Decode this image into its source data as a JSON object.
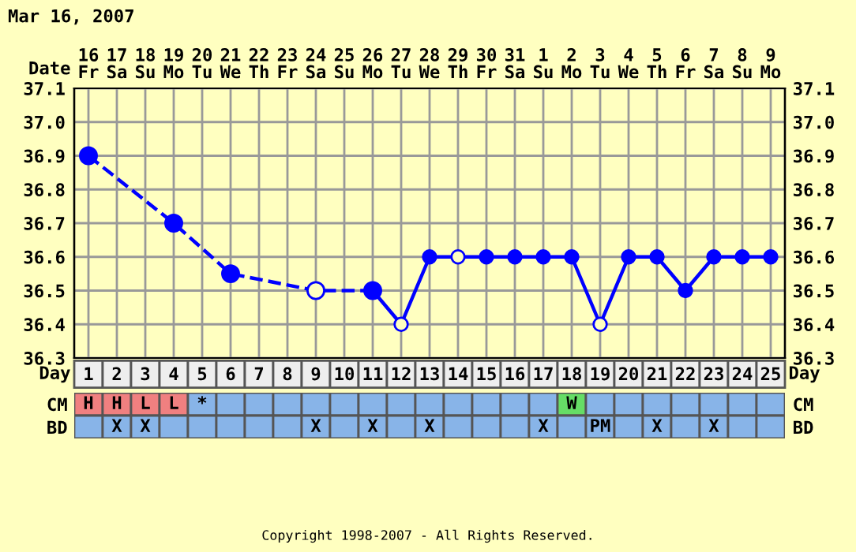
{
  "chart_data": [
    {
      "type": "line",
      "title": "Mar 16, 2007",
      "xlabel": "Day",
      "x2label": "Date",
      "xlim": [
        0.5,
        25.5
      ],
      "xticks": [
        1,
        2,
        3,
        4,
        5,
        6,
        7,
        8,
        9,
        10,
        11,
        12,
        13,
        14,
        15,
        16,
        17,
        18,
        19,
        20,
        21,
        22,
        23,
        24,
        25
      ],
      "x2lim": [
        "2007-03-15T12:00",
        "2007-04-09T12:00"
      ],
      "x2ticks": [
        {
          "value": "2007-03-16",
          "label": "16\nFr"
        },
        {
          "value": "2007-03-17",
          "label": "17\nSa"
        },
        {
          "value": "2007-03-18",
          "label": "18\nSu"
        },
        {
          "value": "2007-03-19",
          "label": "19\nMo"
        },
        {
          "value": "2007-03-20",
          "label": "20\nTu"
        },
        {
          "value": "2007-03-21",
          "label": "21\nWe"
        },
        {
          "value": "2007-03-22",
          "label": "22\nTh"
        },
        {
          "value": "2007-03-23",
          "label": "23\nFr"
        },
        {
          "value": "2007-03-24",
          "label": "24\nSa"
        },
        {
          "value": "2007-03-25",
          "label": "25\nSu"
        },
        {
          "value": "2007-03-26",
          "label": "26\nMo"
        },
        {
          "value": "2007-03-27",
          "label": "27\nTu"
        },
        {
          "value": "2007-03-28",
          "label": "28\nWe"
        },
        {
          "value": "2007-03-29",
          "label": "29\nTh"
        },
        {
          "value": "2007-03-30",
          "label": "30\nFr"
        },
        {
          "value": "2007-03-31",
          "label": "31\nSa"
        },
        {
          "value": "2007-04-01",
          "label": "1\nSu"
        },
        {
          "value": "2007-04-02",
          "label": "2\nMo"
        },
        {
          "value": "2007-04-03",
          "label": "3\nTu"
        },
        {
          "value": "2007-04-04",
          "label": "4\nWe"
        },
        {
          "value": "2007-04-05",
          "label": "5\nTh"
        },
        {
          "value": "2007-04-06",
          "label": "6\nFr"
        },
        {
          "value": "2007-04-07",
          "label": "7\nSa"
        },
        {
          "value": "2007-04-08",
          "label": "8\nSu"
        },
        {
          "value": "2007-04-09",
          "label": "9\nMo"
        }
      ],
      "ylim": [
        36.3,
        37.1
      ],
      "yticks": [
        36.3,
        36.4,
        36.5,
        36.6,
        36.7,
        36.8,
        36.9,
        {
          "value": 37.0,
          "label": "37.0"
        },
        37.1
      ],
      "y2lim": [
        36.3,
        37.1
      ],
      "y2ticks": [
        36.3,
        36.4,
        36.5,
        36.6,
        36.7,
        36.8,
        36.9,
        {
          "value": 37.0,
          "label": "37.0"
        },
        37.1
      ],
      "grid": true,
      "marker": "circle",
      "series": [
        {
          "color": "#0000ff",
          "line_style": "dashed",
          "x": [
            1,
            4,
            6,
            9,
            11
          ],
          "values": [
            36.9,
            36.7,
            36.55,
            36.5,
            36.5
          ],
          "colors": [
            "#0000ff",
            "#0000ff",
            "#0000ff",
            "#ffffc0",
            "#0000ff"
          ]
        },
        {
          "color": "#0000ff",
          "line_style": "solid",
          "x": [
            11,
            12,
            13,
            14,
            15,
            16,
            17,
            18,
            19,
            20,
            21,
            22,
            23,
            24,
            25
          ],
          "values": [
            36.5,
            36.4,
            36.6,
            36.6,
            36.6,
            36.6,
            36.6,
            36.6,
            36.4,
            36.6,
            36.6,
            36.5,
            36.6,
            36.6,
            36.6
          ],
          "colors": [
            "#0000ff",
            "#ffffc0",
            "#0000ff",
            "#ffffc0",
            "#0000ff",
            "#0000ff",
            "#0000ff",
            "#0000ff",
            "#ffffc0",
            "#0000ff",
            "#0000ff",
            "#0000ff",
            "#0000ff",
            "#0000ff",
            "#0000ff"
          ]
        }
      ]
    },
    {
      "type": "other",
      "categories": [
        null,
        null,
        null,
        null,
        null,
        null,
        null,
        null,
        null,
        null,
        null,
        null,
        null,
        null,
        null,
        null,
        null,
        null,
        null,
        null,
        null,
        null,
        null,
        null,
        null
      ],
      "y_categories": [
        "CM",
        "BD"
      ],
      "y2_categories": [
        "CM",
        "BD"
      ],
      "cell_labels": [
        [
          "H",
          "H",
          "L",
          "L",
          "*",
          null,
          null,
          null,
          null,
          null,
          null,
          null,
          null,
          null,
          null,
          null,
          null,
          "W",
          null,
          null,
          null,
          null,
          null,
          null,
          null
        ],
        [
          null,
          "X",
          "X",
          null,
          null,
          null,
          null,
          null,
          "X",
          null,
          "X",
          null,
          "X",
          null,
          null,
          null,
          "X",
          null,
          "PM",
          null,
          "X",
          null,
          "X",
          null,
          null
        ]
      ],
      "colors": [
        [
          "#f08080",
          "#f08080",
          "#f08080",
          "#f08080",
          "#88b4e8",
          "#88b4e8",
          "#88b4e8",
          "#88b4e8",
          "#88b4e8",
          "#88b4e8",
          "#88b4e8",
          "#88b4e8",
          "#88b4e8",
          "#88b4e8",
          "#88b4e8",
          "#88b4e8",
          "#88b4e8",
          "#66dd66",
          "#88b4e8",
          "#88b4e8",
          "#88b4e8",
          "#88b4e8",
          "#88b4e8",
          "#88b4e8",
          "#88b4e8"
        ],
        [
          "#88b4e8",
          "#88b4e8",
          "#88b4e8",
          "#88b4e8",
          "#88b4e8",
          "#88b4e8",
          "#88b4e8",
          "#88b4e8",
          "#88b4e8",
          "#88b4e8",
          "#88b4e8",
          "#88b4e8",
          "#88b4e8",
          "#88b4e8",
          "#88b4e8",
          "#88b4e8",
          "#88b4e8",
          "#88b4e8",
          "#88b4e8",
          "#88b4e8",
          "#88b4e8",
          "#88b4e8",
          "#88b4e8",
          "#88b4e8",
          "#88b4e8"
        ]
      ],
      "annotations": [
        "Copyright 1998-2007 - All Rights Reserved."
      ]
    }
  ]
}
